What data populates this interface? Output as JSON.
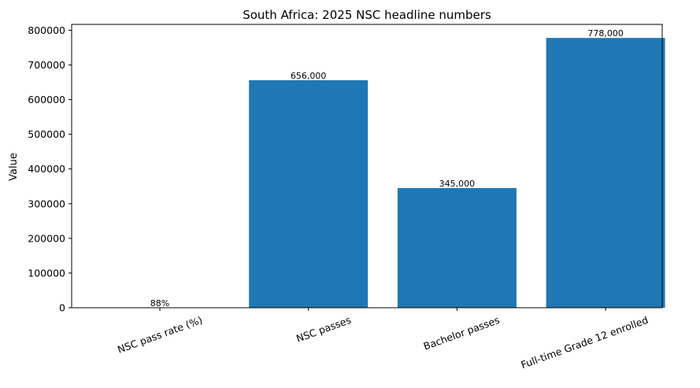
{
  "chart_data": {
    "type": "bar",
    "title": "South Africa: 2025 NSC headline numbers",
    "xlabel": "",
    "ylabel": "Value",
    "categories": [
      "NSC pass rate (%)",
      "NSC passes",
      "Bachelor passes",
      "Full-time Grade 12 enrolled"
    ],
    "values": [
      88,
      656000,
      345000,
      778000
    ],
    "data_labels": [
      "88%",
      "656,000",
      "345,000",
      "778,000"
    ],
    "ylim": [
      0,
      817000
    ],
    "yticks": [
      0,
      100000,
      200000,
      300000,
      400000,
      500000,
      600000,
      700000,
      800000
    ],
    "ytick_labels": [
      "0",
      "100000",
      "200000",
      "300000",
      "400000",
      "500000",
      "600000",
      "700000",
      "800000"
    ],
    "grid": false,
    "legend": "none",
    "bar_color": "#1f77b4"
  }
}
